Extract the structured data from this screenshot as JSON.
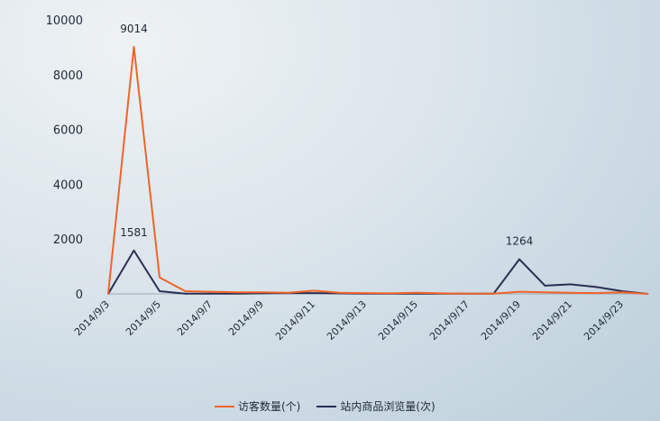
{
  "chart_data": {
    "type": "line",
    "x": [
      "2014/9/3",
      "2014/9/4",
      "2014/9/5",
      "2014/9/6",
      "2014/9/7",
      "2014/9/8",
      "2014/9/9",
      "2014/9/10",
      "2014/9/11",
      "2014/9/12",
      "2014/9/13",
      "2014/9/14",
      "2014/9/15",
      "2014/9/16",
      "2014/9/17",
      "2014/9/18",
      "2014/9/19",
      "2014/9/20",
      "2014/9/21",
      "2014/9/22",
      "2014/9/23",
      "2014/9/24"
    ],
    "x_tick_labels": [
      "2014/9/3",
      "2014/9/5",
      "2014/9/7",
      "2014/9/9",
      "2014/9/11",
      "2014/9/13",
      "2014/9/15",
      "2014/9/17",
      "2014/9/19",
      "2014/9/21",
      "2014/9/23"
    ],
    "y_ticks": [
      "0",
      "2000",
      "4000",
      "6000",
      "8000",
      "10000"
    ],
    "ylim": [
      0,
      10000
    ],
    "grid": false,
    "legend_position": "bottom",
    "series": [
      {
        "name": "访客数量(个)",
        "color": "#f0642a",
        "values": [
          0,
          9014,
          600,
          100,
          80,
          60,
          60,
          40,
          120,
          40,
          30,
          20,
          40,
          20,
          10,
          10,
          80,
          60,
          40,
          30,
          60,
          0
        ]
      },
      {
        "name": "站内商品浏览量(次)",
        "color": "#2a2f52",
        "values": [
          0,
          1581,
          100,
          10,
          10,
          10,
          20,
          30,
          30,
          20,
          10,
          10,
          10,
          10,
          10,
          10,
          1264,
          300,
          350,
          250,
          100,
          0
        ]
      }
    ],
    "annotations": [
      {
        "series": 0,
        "x": "2014/9/4",
        "text": "9014"
      },
      {
        "series": 1,
        "x": "2014/9/4",
        "text": "1581"
      },
      {
        "series": 1,
        "x": "2014/9/19",
        "text": "1264"
      }
    ]
  }
}
